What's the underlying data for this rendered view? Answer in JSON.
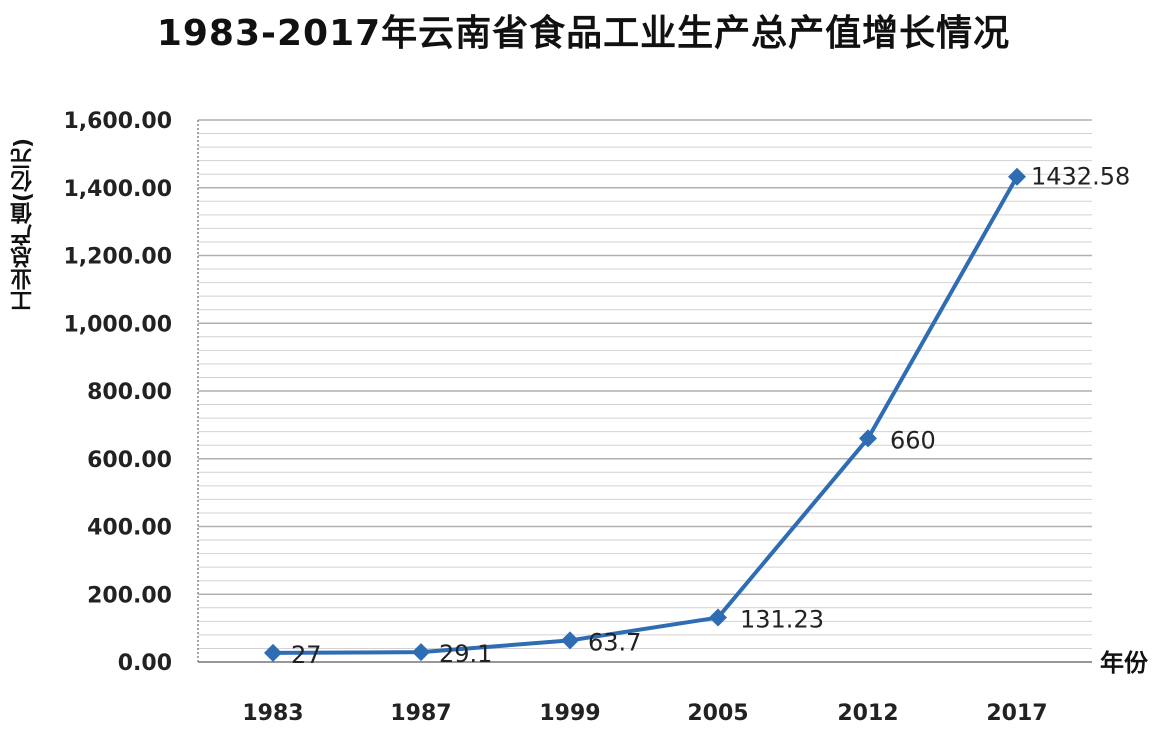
{
  "chart_data": {
    "type": "line",
    "title": "1983-2017年云南省食品工业生产总产值增长情况",
    "ylabel": "工业总产值(亿元)",
    "xlabel": "年份",
    "categories": [
      "1983",
      "1987",
      "1999",
      "2005",
      "2012",
      "2017"
    ],
    "series": [
      {
        "values": [
          27,
          29.1,
          63.7,
          131.23,
          660,
          1432.58
        ]
      }
    ],
    "data_labels": [
      "27",
      "29.1",
      "63.7",
      "131.23",
      "660",
      "1432.58"
    ],
    "y_ticks": [
      0,
      200,
      400,
      600,
      800,
      1000,
      1200,
      1400,
      1600
    ],
    "y_tick_labels": [
      "0.00",
      "200.00",
      "400.00",
      "600.00",
      "800.00",
      "1,000.00",
      "1,200.00",
      "1,400.00",
      "1,600.00"
    ],
    "ylim": [
      0,
      1600
    ],
    "minor_gridlines": true,
    "grid": true,
    "line_color": "#2E6DB4",
    "marker": "diamond"
  }
}
